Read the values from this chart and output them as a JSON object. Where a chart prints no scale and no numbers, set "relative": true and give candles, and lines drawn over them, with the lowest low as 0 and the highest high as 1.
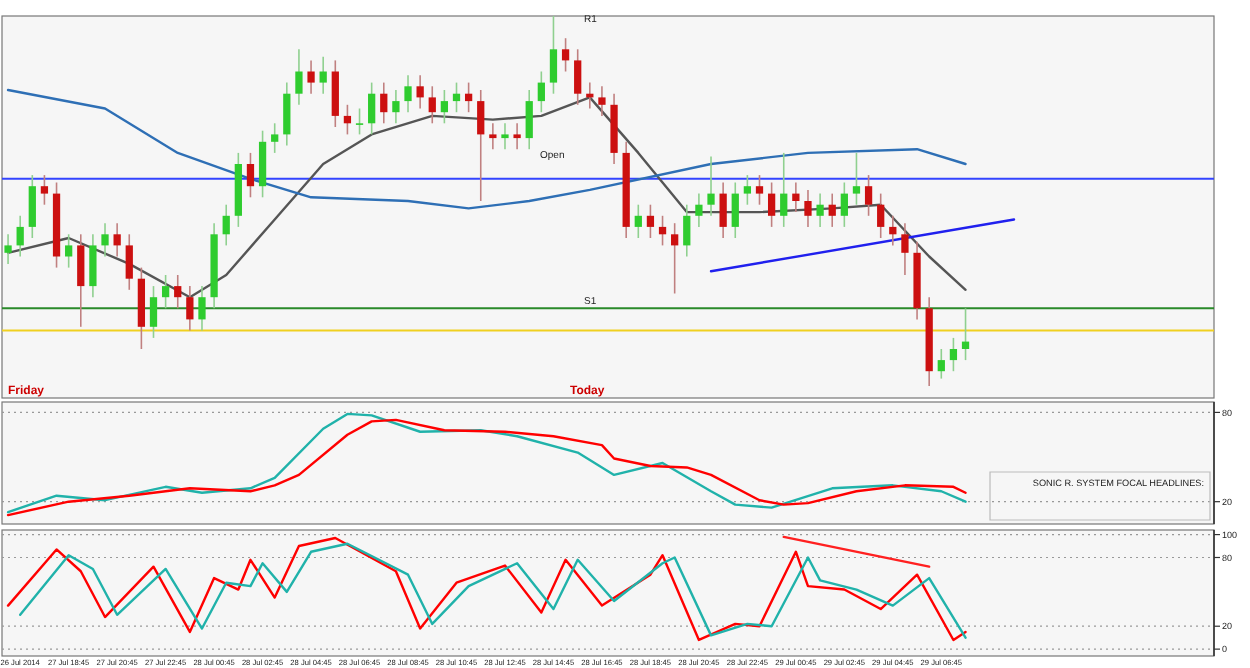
{
  "chart_data": [
    {
      "type": "candlestick",
      "relative": true,
      "categories": [
        null,
        null,
        null,
        null,
        null,
        null,
        null,
        null,
        null,
        null,
        null,
        null,
        null,
        null,
        null,
        null,
        null,
        null,
        null,
        null,
        null,
        null,
        null,
        null,
        null,
        null,
        null,
        null,
        null,
        null,
        null,
        null,
        null,
        null,
        null,
        null,
        null,
        null,
        null,
        null,
        null,
        null,
        null,
        null,
        null,
        null,
        null,
        null,
        null,
        null,
        null,
        null,
        null,
        null,
        null,
        null,
        null,
        null,
        null,
        null,
        null,
        null,
        null,
        null,
        null,
        null,
        null,
        null,
        null,
        null,
        null,
        null,
        null,
        null,
        null,
        null,
        null,
        null,
        null,
        null,
        null,
        null,
        null,
        null,
        null,
        null,
        null,
        null,
        null,
        null,
        null,
        null,
        null,
        null,
        null,
        null,
        null,
        null,
        null,
        null
      ],
      "ohlc": [
        [
          0.36,
          0.41,
          0.33,
          0.38
        ],
        [
          0.38,
          0.46,
          0.35,
          0.43
        ],
        [
          0.43,
          0.57,
          0.4,
          0.54
        ],
        [
          0.54,
          0.57,
          0.49,
          0.52
        ],
        [
          0.52,
          0.55,
          0.32,
          0.35
        ],
        [
          0.35,
          0.41,
          0.32,
          0.38
        ],
        [
          0.38,
          0.41,
          0.16,
          0.27
        ],
        [
          0.27,
          0.41,
          0.24,
          0.38
        ],
        [
          0.38,
          0.44,
          0.35,
          0.41
        ],
        [
          0.41,
          0.44,
          0.35,
          0.38
        ],
        [
          0.38,
          0.41,
          0.26,
          0.29
        ],
        [
          0.29,
          0.32,
          0.1,
          0.16
        ],
        [
          0.16,
          0.27,
          0.13,
          0.24
        ],
        [
          0.24,
          0.3,
          0.21,
          0.27
        ],
        [
          0.27,
          0.3,
          0.21,
          0.24
        ],
        [
          0.24,
          0.27,
          0.15,
          0.18
        ],
        [
          0.18,
          0.27,
          0.15,
          0.24
        ],
        [
          0.24,
          0.44,
          0.21,
          0.41
        ],
        [
          0.41,
          0.49,
          0.38,
          0.46
        ],
        [
          0.46,
          0.63,
          0.43,
          0.6
        ],
        [
          0.6,
          0.63,
          0.51,
          0.54
        ],
        [
          0.54,
          0.69,
          0.51,
          0.66
        ],
        [
          0.66,
          0.71,
          0.63,
          0.68
        ],
        [
          0.68,
          0.82,
          0.65,
          0.79
        ],
        [
          0.79,
          0.91,
          0.76,
          0.85
        ],
        [
          0.85,
          0.88,
          0.79,
          0.82
        ],
        [
          0.82,
          0.89,
          0.79,
          0.85
        ],
        [
          0.85,
          0.88,
          0.7,
          0.73
        ],
        [
          0.73,
          0.76,
          0.68,
          0.71
        ],
        [
          0.71,
          0.75,
          0.68,
          0.71
        ],
        [
          0.71,
          0.82,
          0.68,
          0.79
        ],
        [
          0.79,
          0.82,
          0.71,
          0.74
        ],
        [
          0.74,
          0.8,
          0.71,
          0.77
        ],
        [
          0.77,
          0.84,
          0.74,
          0.81
        ],
        [
          0.81,
          0.84,
          0.75,
          0.78
        ],
        [
          0.78,
          0.81,
          0.71,
          0.74
        ],
        [
          0.74,
          0.8,
          0.71,
          0.77
        ],
        [
          0.77,
          0.82,
          0.74,
          0.79
        ],
        [
          0.79,
          0.82,
          0.74,
          0.77
        ],
        [
          0.77,
          0.8,
          0.5,
          0.68
        ],
        [
          0.68,
          0.71,
          0.64,
          0.67
        ],
        [
          0.67,
          0.71,
          0.64,
          0.68
        ],
        [
          0.68,
          0.71,
          0.64,
          0.67
        ],
        [
          0.67,
          0.8,
          0.64,
          0.77
        ],
        [
          0.77,
          0.85,
          0.74,
          0.82
        ],
        [
          0.82,
          1,
          0.79,
          0.91
        ],
        [
          0.91,
          0.94,
          0.85,
          0.88
        ],
        [
          0.88,
          0.91,
          0.76,
          0.79
        ],
        [
          0.79,
          0.82,
          0.75,
          0.78
        ],
        [
          0.78,
          0.81,
          0.73,
          0.76
        ],
        [
          0.76,
          0.79,
          0.6,
          0.63
        ],
        [
          0.63,
          0.66,
          0.4,
          0.43
        ],
        [
          0.43,
          0.49,
          0.4,
          0.46
        ],
        [
          0.46,
          0.49,
          0.4,
          0.43
        ],
        [
          0.43,
          0.46,
          0.38,
          0.41
        ],
        [
          0.41,
          0.44,
          0.25,
          0.38
        ],
        [
          0.38,
          0.49,
          0.35,
          0.46
        ],
        [
          0.46,
          0.52,
          0.43,
          0.49
        ],
        [
          0.49,
          0.62,
          0.46,
          0.52
        ],
        [
          0.52,
          0.55,
          0.4,
          0.43
        ],
        [
          0.43,
          0.55,
          0.4,
          0.52
        ],
        [
          0.52,
          0.57,
          0.49,
          0.54
        ],
        [
          0.54,
          0.57,
          0.49,
          0.52
        ],
        [
          0.52,
          0.55,
          0.43,
          0.46
        ],
        [
          0.46,
          0.63,
          0.43,
          0.52
        ],
        [
          0.52,
          0.55,
          0.47,
          0.5
        ],
        [
          0.5,
          0.53,
          0.43,
          0.46
        ],
        [
          0.46,
          0.52,
          0.43,
          0.49
        ],
        [
          0.49,
          0.52,
          0.43,
          0.46
        ],
        [
          0.46,
          0.55,
          0.43,
          0.52
        ],
        [
          0.52,
          0.63,
          0.49,
          0.54
        ],
        [
          0.54,
          0.57,
          0.46,
          0.49
        ],
        [
          0.49,
          0.52,
          0.4,
          0.43
        ],
        [
          0.43,
          0.46,
          0.38,
          0.41
        ],
        [
          0.41,
          0.44,
          0.3,
          0.36
        ],
        [
          0.36,
          0.39,
          0.18,
          0.21
        ],
        [
          0.21,
          0.24,
          0,
          0.04
        ],
        [
          0.04,
          0.1,
          0.02,
          0.07
        ],
        [
          0.07,
          0.13,
          0.04,
          0.1
        ],
        [
          0.1,
          0.21,
          0.07,
          0.12
        ],
        null,
        null,
        null,
        null,
        null,
        null,
        null,
        null,
        null,
        null,
        null,
        null,
        null,
        null,
        null,
        null,
        null,
        null,
        null,
        null
      ],
      "series": [
        {
          "type": "line",
          "color": "#555555",
          "values": [
            0.36,
            null,
            null,
            null,
            null,
            0.4,
            null,
            null,
            null,
            null,
            0.33,
            null,
            null,
            null,
            null,
            0.24,
            null,
            null,
            0.3,
            null,
            null,
            null,
            0.45,
            null,
            null,
            null,
            0.6,
            null,
            null,
            null,
            0.68,
            null,
            null,
            null,
            null,
            0.73,
            null,
            null,
            null,
            null,
            0.72,
            null,
            null,
            null,
            0.73,
            null,
            null,
            null,
            0.78,
            null,
            null,
            null,
            0.63,
            null,
            null,
            null,
            0.47,
            null,
            null,
            null,
            null,
            null,
            0.47,
            null,
            null,
            null,
            null,
            null,
            0.48,
            null,
            null,
            null,
            0.49,
            null,
            null,
            null,
            0.35,
            null,
            null,
            0.26,
            null,
            null,
            null,
            null,
            null,
            null,
            null,
            null,
            null,
            null,
            null,
            null,
            null,
            null,
            null,
            null,
            null,
            null,
            null,
            null
          ]
        },
        {
          "type": "line",
          "color": "#2e6fb5",
          "values": [
            0.8,
            null,
            null,
            null,
            null,
            null,
            null,
            null,
            0.75,
            null,
            null,
            null,
            null,
            null,
            0.63,
            null,
            null,
            null,
            null,
            null,
            0.56,
            null,
            null,
            null,
            null,
            0.51,
            null,
            null,
            null,
            null,
            null,
            null,
            null,
            0.5,
            null,
            null,
            null,
            null,
            0.48,
            null,
            null,
            null,
            null,
            0.5,
            null,
            null,
            null,
            null,
            0.53,
            null,
            null,
            null,
            null,
            null,
            null,
            null,
            null,
            null,
            0.6,
            null,
            null,
            null,
            null,
            null,
            null,
            null,
            0.63,
            null,
            null,
            null,
            null,
            null,
            null,
            null,
            null,
            0.64,
            null,
            null,
            null,
            0.6,
            null,
            null,
            null,
            null,
            null,
            null,
            null,
            null,
            null,
            null,
            null,
            null,
            null,
            null,
            null,
            null,
            null,
            null,
            null,
            null
          ]
        },
        {
          "type": "line",
          "color": "#2020ee",
          "values": [
            null,
            null,
            null,
            null,
            null,
            null,
            null,
            null,
            null,
            null,
            null,
            null,
            null,
            null,
            null,
            null,
            null,
            null,
            null,
            null,
            null,
            null,
            null,
            null,
            null,
            null,
            null,
            null,
            null,
            null,
            null,
            null,
            null,
            null,
            null,
            null,
            null,
            null,
            null,
            null,
            null,
            null,
            null,
            null,
            null,
            null,
            null,
            null,
            null,
            null,
            null,
            null,
            null,
            null,
            null,
            null,
            null,
            null,
            0.31,
            null,
            null,
            null,
            null,
            null,
            null,
            null,
            null,
            null,
            null,
            null,
            null,
            null,
            null,
            null,
            null,
            null,
            null,
            null,
            null,
            null,
            null,
            null,
            null,
            0.45,
            null,
            null,
            null,
            null,
            null,
            null,
            null,
            null,
            null,
            null,
            null,
            null,
            null,
            null,
            null,
            null
          ]
        }
      ],
      "ref_lines": [
        {
          "axis": "y",
          "value": 0.56,
          "color": "#3344ff"
        },
        {
          "axis": "y",
          "value": 0.21,
          "color": "#2a8a2a"
        },
        {
          "axis": "y",
          "value": 0.15,
          "color": "#f0d020"
        }
      ],
      "annotations": [
        "Friday",
        "Today",
        "Open",
        "R1",
        "S1"
      ]
    },
    {
      "type": "line",
      "categories": [
        null,
        null,
        null,
        null,
        null,
        null,
        null,
        null,
        null,
        null,
        null,
        null,
        null,
        null,
        null,
        null,
        null,
        null,
        null,
        null,
        null,
        null,
        null,
        null,
        null,
        null,
        null,
        null,
        null,
        null,
        null,
        null,
        null,
        null,
        null,
        null,
        null,
        null,
        null,
        null,
        null,
        null,
        null,
        null,
        null,
        null,
        null,
        null,
        null,
        null,
        null,
        null,
        null,
        null,
        null,
        null,
        null,
        null,
        null,
        null,
        null,
        null,
        null,
        null,
        null,
        null,
        null,
        null,
        null,
        null,
        null,
        null,
        null,
        null,
        null,
        null,
        null,
        null,
        null,
        null,
        null,
        null,
        null,
        null,
        null,
        null,
        null,
        null,
        null,
        null,
        null,
        null,
        null,
        null,
        null,
        null,
        null,
        null,
        null,
        null
      ],
      "ylim": [
        5,
        87
      ],
      "yticks": [
        20,
        80
      ],
      "grid": "y",
      "series": [
        {
          "color": "#20b2aa",
          "values": [
            13,
            null,
            null,
            null,
            24,
            null,
            null,
            null,
            21,
            null,
            null,
            null,
            null,
            30,
            null,
            null,
            26,
            null,
            null,
            null,
            29,
            null,
            36,
            null,
            null,
            null,
            69,
            null,
            79,
            null,
            78,
            null,
            null,
            null,
            67,
            null,
            null,
            null,
            null,
            68,
            null,
            null,
            64,
            null,
            null,
            null,
            null,
            53,
            null,
            null,
            38,
            null,
            null,
            null,
            46,
            null,
            null,
            null,
            27,
            null,
            18,
            null,
            null,
            16,
            null,
            null,
            null,
            null,
            29,
            null,
            null,
            null,
            null,
            31,
            null,
            null,
            null,
            27,
            null,
            20,
            null,
            null,
            null,
            null,
            null,
            null,
            null,
            null,
            null,
            null,
            null,
            null,
            null,
            null,
            null,
            null,
            null,
            null,
            null,
            null
          ]
        },
        {
          "color": "#ff0000",
          "values": [
            11,
            null,
            null,
            null,
            null,
            20,
            null,
            null,
            null,
            null,
            24,
            null,
            null,
            null,
            null,
            29,
            null,
            null,
            null,
            null,
            27,
            null,
            31,
            null,
            38,
            null,
            null,
            null,
            65,
            null,
            74,
            null,
            75,
            null,
            null,
            null,
            68,
            null,
            null,
            null,
            null,
            67,
            null,
            null,
            null,
            64,
            null,
            null,
            null,
            58,
            49,
            null,
            null,
            44,
            null,
            null,
            43,
            null,
            38,
            null,
            null,
            null,
            21,
            null,
            18,
            null,
            19,
            null,
            null,
            null,
            27,
            null,
            null,
            null,
            31,
            null,
            null,
            null,
            30,
            26,
            null,
            null,
            null,
            null,
            null,
            null,
            null,
            null,
            null,
            null,
            null,
            null,
            null,
            null,
            null,
            null,
            null,
            null,
            null,
            null
          ]
        }
      ],
      "annotations": [
        "SONIC R. SYSTEM  FOCAL HEADLINES:"
      ]
    },
    {
      "type": "line",
      "categories": [
        null,
        "26 Jul 2014",
        null,
        null,
        null,
        "27 Jul 18:45",
        null,
        null,
        null,
        "27 Jul 20:45",
        null,
        null,
        null,
        "27 Jul 22:45",
        null,
        null,
        null,
        "28 Jul 00:45",
        null,
        null,
        null,
        "28 Jul 02:45",
        null,
        null,
        null,
        "28 Jul 04:45",
        null,
        null,
        null,
        "28 Jul 06:45",
        null,
        null,
        null,
        "28 Jul 08:45",
        null,
        null,
        null,
        "28 Jul 10:45",
        null,
        null,
        null,
        "28 Jul 12:45",
        null,
        null,
        null,
        "28 Jul 14:45",
        null,
        null,
        null,
        "28 Jul 16:45",
        null,
        null,
        null,
        "28 Jul 18:45",
        null,
        null,
        null,
        "28 Jul 20:45",
        null,
        null,
        null,
        "28 Jul 22:45",
        null,
        null,
        null,
        "29 Jul 00:45",
        null,
        null,
        null,
        "29 Jul 02:45",
        null,
        null,
        null,
        "29 Jul 04:45",
        null,
        null,
        null,
        "29 Jul 06:45",
        null,
        null,
        null,
        null,
        null,
        null,
        null,
        null,
        null,
        null,
        null,
        null,
        null,
        null,
        null,
        null,
        null,
        null,
        null,
        null,
        null,
        null
      ],
      "ylim": [
        -6,
        104
      ],
      "yticks": [
        0,
        20,
        80,
        100
      ],
      "grid": "y",
      "series": [
        {
          "color": "#ff0000",
          "values": [
            38,
            null,
            null,
            null,
            87,
            null,
            68,
            null,
            28,
            null,
            null,
            null,
            72,
            null,
            null,
            15,
            null,
            62,
            null,
            52,
            78,
            null,
            45,
            null,
            90,
            null,
            null,
            97,
            null,
            null,
            null,
            null,
            68,
            null,
            18,
            null,
            null,
            58,
            null,
            null,
            null,
            73,
            null,
            null,
            32,
            null,
            78,
            null,
            null,
            38,
            null,
            null,
            null,
            65,
            82,
            null,
            null,
            8,
            null,
            null,
            22,
            null,
            20,
            null,
            null,
            85,
            55,
            null,
            null,
            52,
            null,
            null,
            35,
            null,
            null,
            65,
            null,
            null,
            8,
            15,
            null,
            null,
            null,
            null,
            null,
            null,
            null,
            null,
            null,
            null,
            null,
            null,
            null,
            null,
            null,
            null,
            null,
            null,
            null,
            null
          ]
        },
        {
          "color": "#20b2aa",
          "values": [
            null,
            30,
            null,
            null,
            null,
            82,
            null,
            70,
            null,
            30,
            null,
            null,
            null,
            70,
            null,
            null,
            18,
            null,
            58,
            null,
            55,
            75,
            null,
            50,
            null,
            85,
            null,
            null,
            92,
            null,
            null,
            null,
            null,
            65,
            null,
            22,
            null,
            null,
            55,
            null,
            null,
            null,
            75,
            null,
            null,
            35,
            null,
            78,
            null,
            null,
            42,
            null,
            null,
            null,
            75,
            80,
            null,
            null,
            12,
            null,
            null,
            22,
            null,
            20,
            null,
            null,
            80,
            60,
            null,
            null,
            52,
            null,
            null,
            38,
            null,
            null,
            62,
            null,
            null,
            10,
            null,
            null,
            null,
            null,
            null,
            null,
            null,
            null,
            null,
            null,
            null,
            null,
            null,
            null,
            null,
            null,
            null,
            null,
            null,
            null
          ]
        },
        {
          "type": "line",
          "color": "#ff2020",
          "values": [
            null,
            null,
            null,
            null,
            null,
            null,
            null,
            null,
            null,
            null,
            null,
            null,
            null,
            null,
            null,
            null,
            null,
            null,
            null,
            null,
            null,
            null,
            null,
            null,
            null,
            null,
            null,
            null,
            null,
            null,
            null,
            null,
            null,
            null,
            null,
            null,
            null,
            null,
            null,
            null,
            null,
            null,
            null,
            null,
            null,
            null,
            null,
            null,
            null,
            null,
            null,
            null,
            null,
            null,
            null,
            null,
            null,
            null,
            null,
            null,
            null,
            null,
            null,
            null,
            98,
            null,
            null,
            null,
            null,
            null,
            null,
            null,
            null,
            null,
            null,
            null,
            72,
            null,
            null,
            null,
            null,
            null,
            null,
            null,
            null,
            null,
            null,
            null,
            null,
            null,
            null,
            null,
            null,
            null,
            null,
            null,
            null,
            null,
            null,
            null
          ]
        }
      ]
    }
  ]
}
